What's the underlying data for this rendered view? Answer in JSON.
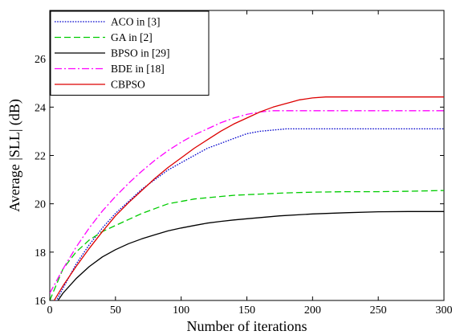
{
  "chart_data": {
    "type": "line",
    "title": "",
    "xlabel": "Number of iterations",
    "ylabel": "Average |SLL| (dB)",
    "xlim": [
      0,
      300
    ],
    "ylim": [
      16,
      28
    ],
    "xticks": [
      "0",
      "50",
      "100",
      "150",
      "200",
      "250",
      "300"
    ],
    "yticks": [
      "16",
      "18",
      "20",
      "22",
      "24",
      "26"
    ],
    "grid": false,
    "legend_position": "top-left",
    "series": [
      {
        "name": "ACO in [3]",
        "color": "#0000cc",
        "dash": "dotted",
        "x": [
          0,
          10,
          20,
          30,
          40,
          50,
          60,
          70,
          80,
          90,
          100,
          110,
          120,
          130,
          140,
          150,
          160,
          170,
          180,
          190,
          200,
          225,
          250,
          275,
          300
        ],
        "y": [
          15.5,
          16.5,
          17.5,
          18.3,
          19.0,
          19.6,
          20.1,
          20.6,
          21.0,
          21.4,
          21.7,
          22.0,
          22.3,
          22.5,
          22.7,
          22.9,
          23.0,
          23.05,
          23.1,
          23.1,
          23.1,
          23.1,
          23.1,
          23.1,
          23.1
        ]
      },
      {
        "name": "GA in [2]",
        "color": "#00cc00",
        "dash": "dashed",
        "x": [
          0,
          10,
          20,
          30,
          40,
          50,
          60,
          70,
          80,
          90,
          100,
          110,
          120,
          140,
          160,
          180,
          200,
          225,
          250,
          275,
          300
        ],
        "y": [
          16.0,
          17.3,
          18.0,
          18.5,
          18.85,
          19.1,
          19.35,
          19.6,
          19.8,
          20.0,
          20.1,
          20.2,
          20.25,
          20.35,
          20.4,
          20.45,
          20.48,
          20.5,
          20.5,
          20.52,
          20.55
        ]
      },
      {
        "name": "BPSO in [29]",
        "color": "#000000",
        "dash": "solid",
        "x": [
          5,
          10,
          20,
          30,
          40,
          50,
          60,
          70,
          80,
          90,
          100,
          110,
          120,
          130,
          140,
          150,
          175,
          200,
          225,
          250,
          275,
          300
        ],
        "y": [
          15.9,
          16.3,
          16.9,
          17.4,
          17.8,
          18.1,
          18.35,
          18.55,
          18.72,
          18.88,
          19.0,
          19.1,
          19.2,
          19.27,
          19.33,
          19.38,
          19.5,
          19.58,
          19.63,
          19.67,
          19.68,
          19.68
        ]
      },
      {
        "name": "BDE in [18]",
        "color": "#ff00ff",
        "dash": "dashdot",
        "x": [
          0,
          10,
          20,
          30,
          40,
          50,
          60,
          70,
          80,
          90,
          100,
          110,
          120,
          130,
          140,
          150,
          160,
          170,
          180,
          200,
          250,
          300
        ],
        "y": [
          16.3,
          17.3,
          18.2,
          19.0,
          19.7,
          20.3,
          20.85,
          21.35,
          21.8,
          22.2,
          22.55,
          22.85,
          23.1,
          23.35,
          23.55,
          23.7,
          23.8,
          23.85,
          23.85,
          23.85,
          23.85,
          23.85
        ]
      },
      {
        "name": "CBPSO",
        "color": "#dd0000",
        "dash": "solid",
        "x": [
          0,
          10,
          20,
          30,
          40,
          50,
          60,
          70,
          80,
          90,
          100,
          110,
          120,
          130,
          140,
          150,
          160,
          170,
          180,
          190,
          200,
          210,
          250,
          300
        ],
        "y": [
          15.7,
          16.6,
          17.4,
          18.15,
          18.85,
          19.5,
          20.05,
          20.55,
          21.05,
          21.5,
          21.9,
          22.3,
          22.65,
          23.0,
          23.3,
          23.55,
          23.8,
          24.0,
          24.15,
          24.3,
          24.38,
          24.42,
          24.42,
          24.42
        ]
      }
    ]
  }
}
